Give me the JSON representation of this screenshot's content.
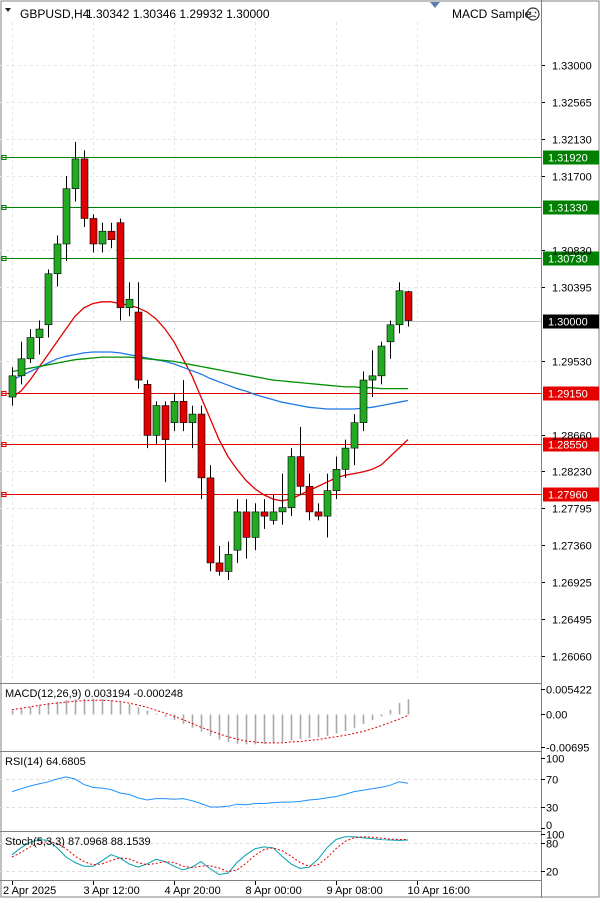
{
  "header": {
    "symbol_tf": "GBPUSD,H4",
    "ohlc": "1.30342 1.30346 1.29932 1.30000",
    "expert": "MACD Sample"
  },
  "chart_data": {
    "type": "candlestick",
    "symbol": "GBPUSD",
    "timeframe": "H4",
    "price_ylim": [
      1.2575,
      1.3351
    ],
    "price_ticks": [
      "1.33000",
      "1.32565",
      "1.32130",
      "1.31700",
      "1.30830",
      "1.30395",
      "1.29530",
      "1.28660",
      "1.28230",
      "1.27795",
      "1.27360",
      "1.26925",
      "1.26495",
      "1.26060"
    ],
    "current_price": {
      "label": "1.30000",
      "value": 1.3,
      "color": "#000000"
    },
    "levels": [
      {
        "label": "1.31920",
        "value": 1.3192,
        "color": "#008000"
      },
      {
        "label": "1.31330",
        "value": 1.3133,
        "color": "#008000"
      },
      {
        "label": "1.30730",
        "value": 1.3073,
        "color": "#008000"
      },
      {
        "label": "1.29150",
        "value": 1.2915,
        "color": "#e50000"
      },
      {
        "label": "1.28550",
        "value": 1.2855,
        "color": "#e50000"
      },
      {
        "label": "1.27960",
        "value": 1.2796,
        "color": "#e50000"
      }
    ],
    "candle_colors": {
      "bull": "#22aa22",
      "bear": "#e00000",
      "wick": "#000000"
    },
    "candles": [
      {
        "o": 1.291,
        "h": 1.2945,
        "l": 1.29,
        "c": 1.2935
      },
      {
        "o": 1.2935,
        "h": 1.2975,
        "l": 1.2925,
        "c": 1.2955
      },
      {
        "o": 1.2955,
        "h": 1.299,
        "l": 1.295,
        "c": 1.298
      },
      {
        "o": 1.298,
        "h": 1.3,
        "l": 1.296,
        "c": 1.299
      },
      {
        "o": 1.2995,
        "h": 1.306,
        "l": 1.298,
        "c": 1.3055
      },
      {
        "o": 1.3055,
        "h": 1.31,
        "l": 1.304,
        "c": 1.309
      },
      {
        "o": 1.309,
        "h": 1.317,
        "l": 1.307,
        "c": 1.3155
      },
      {
        "o": 1.3155,
        "h": 1.321,
        "l": 1.314,
        "c": 1.319
      },
      {
        "o": 1.319,
        "h": 1.32,
        "l": 1.311,
        "c": 1.312
      },
      {
        "o": 1.312,
        "h": 1.3125,
        "l": 1.308,
        "c": 1.309
      },
      {
        "o": 1.309,
        "h": 1.3115,
        "l": 1.308,
        "c": 1.3105
      },
      {
        "o": 1.3105,
        "h": 1.3115,
        "l": 1.3085,
        "c": 1.3095
      },
      {
        "o": 1.3115,
        "h": 1.312,
        "l": 1.3,
        "c": 1.3015
      },
      {
        "o": 1.3015,
        "h": 1.3045,
        "l": 1.3005,
        "c": 1.3025
      },
      {
        "o": 1.301,
        "h": 1.3045,
        "l": 1.292,
        "c": 1.293
      },
      {
        "o": 1.2925,
        "h": 1.293,
        "l": 1.285,
        "c": 1.2865
      },
      {
        "o": 1.2865,
        "h": 1.2905,
        "l": 1.2855,
        "c": 1.29
      },
      {
        "o": 1.29,
        "h": 1.2905,
        "l": 1.281,
        "c": 1.286
      },
      {
        "o": 1.288,
        "h": 1.2915,
        "l": 1.287,
        "c": 1.2905
      },
      {
        "o": 1.2905,
        "h": 1.293,
        "l": 1.287,
        "c": 1.288
      },
      {
        "o": 1.288,
        "h": 1.29,
        "l": 1.285,
        "c": 1.289
      },
      {
        "o": 1.289,
        "h": 1.29,
        "l": 1.279,
        "c": 1.2815
      },
      {
        "o": 1.2815,
        "h": 1.283,
        "l": 1.2705,
        "c": 1.2715
      },
      {
        "o": 1.2715,
        "h": 1.2735,
        "l": 1.27,
        "c": 1.2705
      },
      {
        "o": 1.2705,
        "h": 1.274,
        "l": 1.2695,
        "c": 1.2725
      },
      {
        "o": 1.273,
        "h": 1.279,
        "l": 1.2715,
        "c": 1.2775
      },
      {
        "o": 1.2775,
        "h": 1.279,
        "l": 1.272,
        "c": 1.2745
      },
      {
        "o": 1.2745,
        "h": 1.2785,
        "l": 1.273,
        "c": 1.2775
      },
      {
        "o": 1.2775,
        "h": 1.279,
        "l": 1.2755,
        "c": 1.277
      },
      {
        "o": 1.2765,
        "h": 1.2795,
        "l": 1.276,
        "c": 1.2775
      },
      {
        "o": 1.2775,
        "h": 1.282,
        "l": 1.276,
        "c": 1.278
      },
      {
        "o": 1.278,
        "h": 1.285,
        "l": 1.277,
        "c": 1.284
      },
      {
        "o": 1.284,
        "h": 1.2875,
        "l": 1.2795,
        "c": 1.2805
      },
      {
        "o": 1.2805,
        "h": 1.282,
        "l": 1.2765,
        "c": 1.2775
      },
      {
        "o": 1.2775,
        "h": 1.2785,
        "l": 1.2765,
        "c": 1.277
      },
      {
        "o": 1.277,
        "h": 1.282,
        "l": 1.2745,
        "c": 1.28
      },
      {
        "o": 1.28,
        "h": 1.284,
        "l": 1.279,
        "c": 1.2825
      },
      {
        "o": 1.2825,
        "h": 1.286,
        "l": 1.2815,
        "c": 1.285
      },
      {
        "o": 1.285,
        "h": 1.289,
        "l": 1.283,
        "c": 1.288
      },
      {
        "o": 1.288,
        "h": 1.294,
        "l": 1.287,
        "c": 1.293
      },
      {
        "o": 1.293,
        "h": 1.2965,
        "l": 1.291,
        "c": 1.2935
      },
      {
        "o": 1.2935,
        "h": 1.2975,
        "l": 1.2925,
        "c": 1.297
      },
      {
        "o": 1.2975,
        "h": 1.3,
        "l": 1.2955,
        "c": 1.2995
      },
      {
        "o": 1.2995,
        "h": 1.3045,
        "l": 1.2985,
        "c": 1.3035
      },
      {
        "o": 1.3034,
        "h": 1.3035,
        "l": 1.2993,
        "c": 1.3
      }
    ],
    "moving_averages": [
      {
        "color": "#e00000",
        "values": [
          1.291,
          1.2917,
          1.293,
          1.2945,
          1.296,
          1.2975,
          1.299,
          1.3005,
          1.3015,
          1.302,
          1.3022,
          1.3022,
          1.302,
          1.3018,
          1.3015,
          1.301,
          1.3002,
          1.299,
          1.2975,
          1.2955,
          1.2935,
          1.291,
          1.2885,
          1.286,
          1.284,
          1.2825,
          1.2812,
          1.2802,
          1.2795,
          1.279,
          1.2788,
          1.279,
          1.2795,
          1.28,
          1.2805,
          1.281,
          1.2815,
          1.2818,
          1.282,
          1.2822,
          1.2825,
          1.283,
          1.284,
          1.285,
          1.286
        ]
      },
      {
        "color": "#1e78e6",
        "values": [
          1.293,
          1.2935,
          1.294,
          1.2945,
          1.295,
          1.2955,
          1.2958,
          1.296,
          1.2962,
          1.2963,
          1.2963,
          1.2963,
          1.2962,
          1.296,
          1.2958,
          1.2956,
          1.2954,
          1.2952,
          1.2949,
          1.2945,
          1.2941,
          1.2937,
          1.2932,
          1.2928,
          1.2924,
          1.292,
          1.2917,
          1.2913,
          1.291,
          1.2907,
          1.2904,
          1.2902,
          1.29,
          1.2898,
          1.2897,
          1.2896,
          1.2896,
          1.2896,
          1.2896,
          1.2897,
          1.2898,
          1.29,
          1.2902,
          1.2904,
          1.2906
        ]
      },
      {
        "color": "#009000",
        "values": [
          1.294,
          1.2942,
          1.2944,
          1.2946,
          1.2948,
          1.295,
          1.2952,
          1.2954,
          1.2955,
          1.2956,
          1.2957,
          1.2957,
          1.2957,
          1.2957,
          1.2956,
          1.2955,
          1.2954,
          1.2953,
          1.2952,
          1.295,
          1.2948,
          1.2946,
          1.2944,
          1.2942,
          1.294,
          1.2938,
          1.2936,
          1.2934,
          1.2932,
          1.293,
          1.2929,
          1.2928,
          1.2927,
          1.2926,
          1.2925,
          1.2924,
          1.2923,
          1.2922,
          1.2922,
          1.2921,
          1.2921,
          1.292,
          1.292,
          1.292,
          1.292
        ]
      }
    ],
    "macd": {
      "title": "MACD(12,26,9) 0.003194 -0.000248",
      "ticks": [
        "0.005422",
        "0.00",
        "-0.00695"
      ],
      "ylim": [
        -0.0075,
        0.006
      ],
      "histogram": [
        0.0008,
        0.0012,
        0.0016,
        0.002,
        0.0024,
        0.0027,
        0.003,
        0.0032,
        0.0033,
        0.0033,
        0.0032,
        0.003,
        0.0026,
        0.0022,
        0.0015,
        0.0008,
        0.0002,
        -0.0005,
        -0.0012,
        -0.002,
        -0.0028,
        -0.0036,
        -0.0045,
        -0.0053,
        -0.0058,
        -0.0062,
        -0.0063,
        -0.0063,
        -0.0062,
        -0.006,
        -0.0058,
        -0.0055,
        -0.0052,
        -0.005,
        -0.0048,
        -0.0045,
        -0.004,
        -0.0035,
        -0.0028,
        -0.002,
        -0.0012,
        -0.0004,
        0.001,
        0.0024,
        0.0032
      ],
      "signal": [
        0.001,
        0.0013,
        0.0016,
        0.0019,
        0.0022,
        0.0024,
        0.0026,
        0.0028,
        0.0029,
        0.003,
        0.003,
        0.0029,
        0.0027,
        0.0024,
        0.002,
        0.0015,
        0.0009,
        0.0003,
        -0.0004,
        -0.0011,
        -0.0019,
        -0.0027,
        -0.0034,
        -0.0041,
        -0.0047,
        -0.0052,
        -0.0056,
        -0.0058,
        -0.006,
        -0.006,
        -0.006,
        -0.0058,
        -0.0057,
        -0.0055,
        -0.0053,
        -0.005,
        -0.0047,
        -0.0044,
        -0.004,
        -0.0036,
        -0.003,
        -0.0024,
        -0.0017,
        -0.001,
        -0.0002
      ]
    },
    "rsi": {
      "title": "RSI(14) 64.6805",
      "ticks": [
        "100",
        "70",
        "30",
        "0"
      ],
      "ylim": [
        0,
        100
      ],
      "values": [
        52,
        56,
        60,
        63,
        66,
        70,
        73,
        70,
        62,
        58,
        57,
        55,
        50,
        48,
        43,
        40,
        42,
        42,
        41,
        42,
        39,
        35,
        30,
        30,
        31,
        34,
        33,
        35,
        35,
        36,
        37,
        37,
        38,
        40,
        41,
        43,
        45,
        48,
        52,
        54,
        56,
        58,
        61,
        66,
        64
      ]
    },
    "stoch": {
      "title": "Stoch(5,3,3) 87.0968 88.1539",
      "ticks": [
        "100",
        "80",
        "20"
      ],
      "ylim": [
        0,
        100
      ],
      "main": [
        55,
        70,
        82,
        88,
        86,
        70,
        50,
        38,
        30,
        30,
        42,
        55,
        48,
        35,
        28,
        35,
        45,
        40,
        30,
        22,
        28,
        40,
        25,
        12,
        15,
        38,
        55,
        68,
        72,
        70,
        52,
        35,
        25,
        28,
        45,
        70,
        88,
        94,
        94,
        92,
        90,
        88,
        87,
        86,
        87
      ],
      "signal": [
        50,
        60,
        72,
        80,
        84,
        80,
        68,
        52,
        40,
        33,
        35,
        42,
        48,
        46,
        38,
        33,
        36,
        40,
        38,
        30,
        27,
        30,
        31,
        26,
        18,
        22,
        36,
        54,
        66,
        70,
        64,
        52,
        38,
        30,
        33,
        48,
        68,
        84,
        92,
        94,
        93,
        91,
        89,
        88,
        88
      ]
    },
    "time_labels": [
      {
        "text": "2 Apr 2025",
        "i": 0
      },
      {
        "text": "3 Apr 12:00",
        "i": 9
      },
      {
        "text": "4 Apr 20:00",
        "i": 18
      },
      {
        "text": "8 Apr 00:00",
        "i": 27
      },
      {
        "text": "9 Apr 08:00",
        "i": 36
      },
      {
        "text": "10 Apr 16:00",
        "i": 45
      }
    ]
  }
}
